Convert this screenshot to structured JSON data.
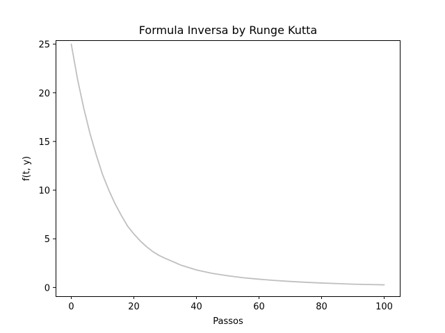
{
  "chart_data": {
    "type": "line",
    "title": "Formula Inversa by Runge Kutta",
    "xlabel": "Passos",
    "ylabel": "f(t, y)",
    "xlim": [
      -5,
      105
    ],
    "ylim": [
      -0.9,
      25.4
    ],
    "xticks": [
      0,
      20,
      40,
      60,
      80,
      100
    ],
    "yticks": [
      0,
      5,
      10,
      15,
      20,
      25
    ],
    "grid": false,
    "legend": "none",
    "series": [
      {
        "color": "#bfbfbf",
        "x": [
          0,
          2,
          4,
          6,
          8,
          10,
          12,
          14,
          16,
          18,
          20,
          22,
          24,
          26,
          28,
          30,
          35,
          40,
          45,
          50,
          55,
          60,
          65,
          70,
          75,
          80,
          85,
          90,
          95,
          100
        ],
        "y": [
          25.0,
          21.4,
          18.4,
          15.8,
          13.6,
          11.6,
          10.0,
          8.6,
          7.4,
          6.3,
          5.5,
          4.8,
          4.2,
          3.7,
          3.3,
          3.0,
          2.3,
          1.8,
          1.45,
          1.2,
          1.0,
          0.85,
          0.72,
          0.62,
          0.53,
          0.46,
          0.4,
          0.34,
          0.3,
          0.27
        ]
      }
    ]
  }
}
